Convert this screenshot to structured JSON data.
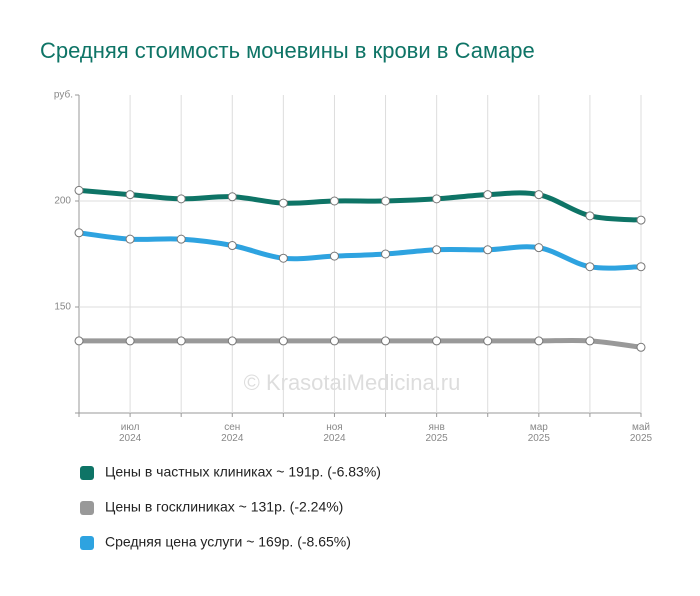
{
  "chart_data": {
    "type": "line",
    "title": "Средняя стоимость мочевины в крови в Самаре",
    "y_label": "руб.",
    "watermark": "© KrasotaiMedicina.ru",
    "categories": [
      null,
      "июл 2024",
      null,
      "сен 2024",
      null,
      "ноя 2024",
      null,
      "янв 2025",
      null,
      "мар 2025",
      null,
      "май 2025"
    ],
    "series": [
      {
        "name": "Цены в частных клиниках ~ 191р. (-6.83%)",
        "color": "#0e7466",
        "values": [
          205,
          203,
          201,
          202,
          199,
          200,
          200,
          201,
          203,
          203,
          193,
          191
        ]
      },
      {
        "name": "Цены в госклиниках ~ 131р. (-2.24%)",
        "color": "#999999",
        "values": [
          134,
          134,
          134,
          134,
          134,
          134,
          134,
          134,
          134,
          134,
          134,
          131
        ]
      },
      {
        "name": "Средняя цена услуги ~ 169р. (-8.65%)",
        "color": "#2ea3e0",
        "values": [
          185,
          182,
          182,
          179,
          173,
          174,
          175,
          177,
          177,
          178,
          169,
          169
        ]
      }
    ],
    "ylim": [
      100,
      250
    ],
    "yticks": [
      150,
      200
    ],
    "grid": true
  }
}
